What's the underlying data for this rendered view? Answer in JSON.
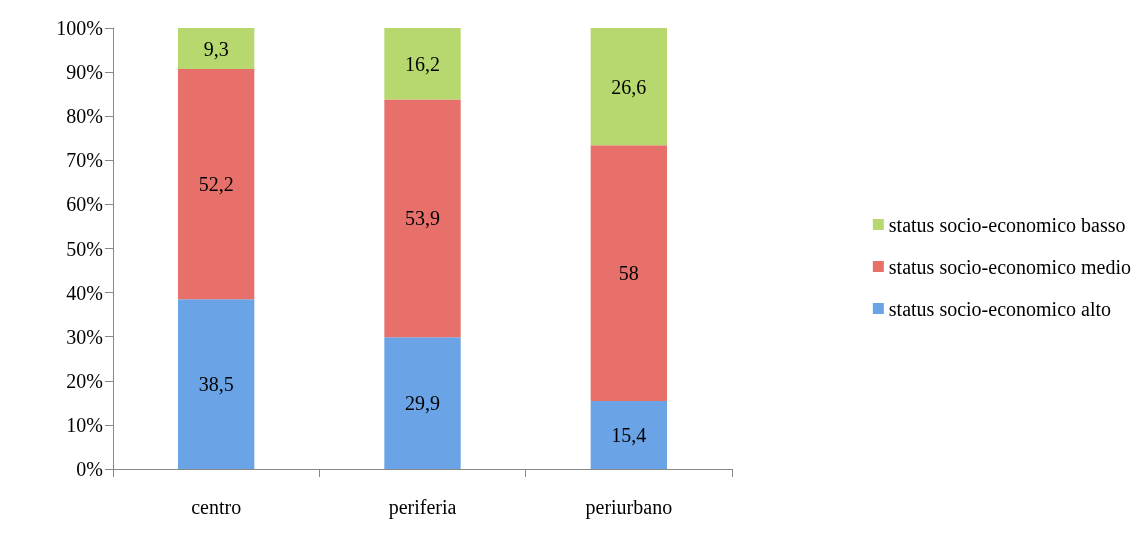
{
  "chart_data": {
    "type": "bar",
    "stacked": true,
    "categories": [
      "centro",
      "periferia",
      "periurbano"
    ],
    "series": [
      {
        "name": "status socio-economico alto",
        "color": "#6aa3e6",
        "values": [
          38.5,
          29.9,
          15.4
        ],
        "value_labels": [
          "38,5",
          "29,9",
          "15,4"
        ]
      },
      {
        "name": "status socio-economico medio",
        "color": "#e8706a",
        "values": [
          52.2,
          53.9,
          58
        ],
        "value_labels": [
          "52,2",
          "53,9",
          "58"
        ]
      },
      {
        "name": "status socio-economico basso",
        "color": "#b6d86e",
        "values": [
          9.3,
          16.2,
          26.6
        ],
        "value_labels": [
          "9,3",
          "16,2",
          "26,6"
        ]
      }
    ],
    "ylim": [
      0,
      100
    ],
    "yticks": [
      {
        "value": 0,
        "label": "0%"
      },
      {
        "value": 10,
        "label": "10%"
      },
      {
        "value": 20,
        "label": "20%"
      },
      {
        "value": 30,
        "label": "30%"
      },
      {
        "value": 40,
        "label": "40%"
      },
      {
        "value": 50,
        "label": "50%"
      },
      {
        "value": 60,
        "label": "60%"
      },
      {
        "value": 70,
        "label": "70%"
      },
      {
        "value": 80,
        "label": "80%"
      },
      {
        "value": 90,
        "label": "90%"
      },
      {
        "value": 100,
        "label": "100%"
      }
    ],
    "grid": false,
    "legend": "right"
  }
}
